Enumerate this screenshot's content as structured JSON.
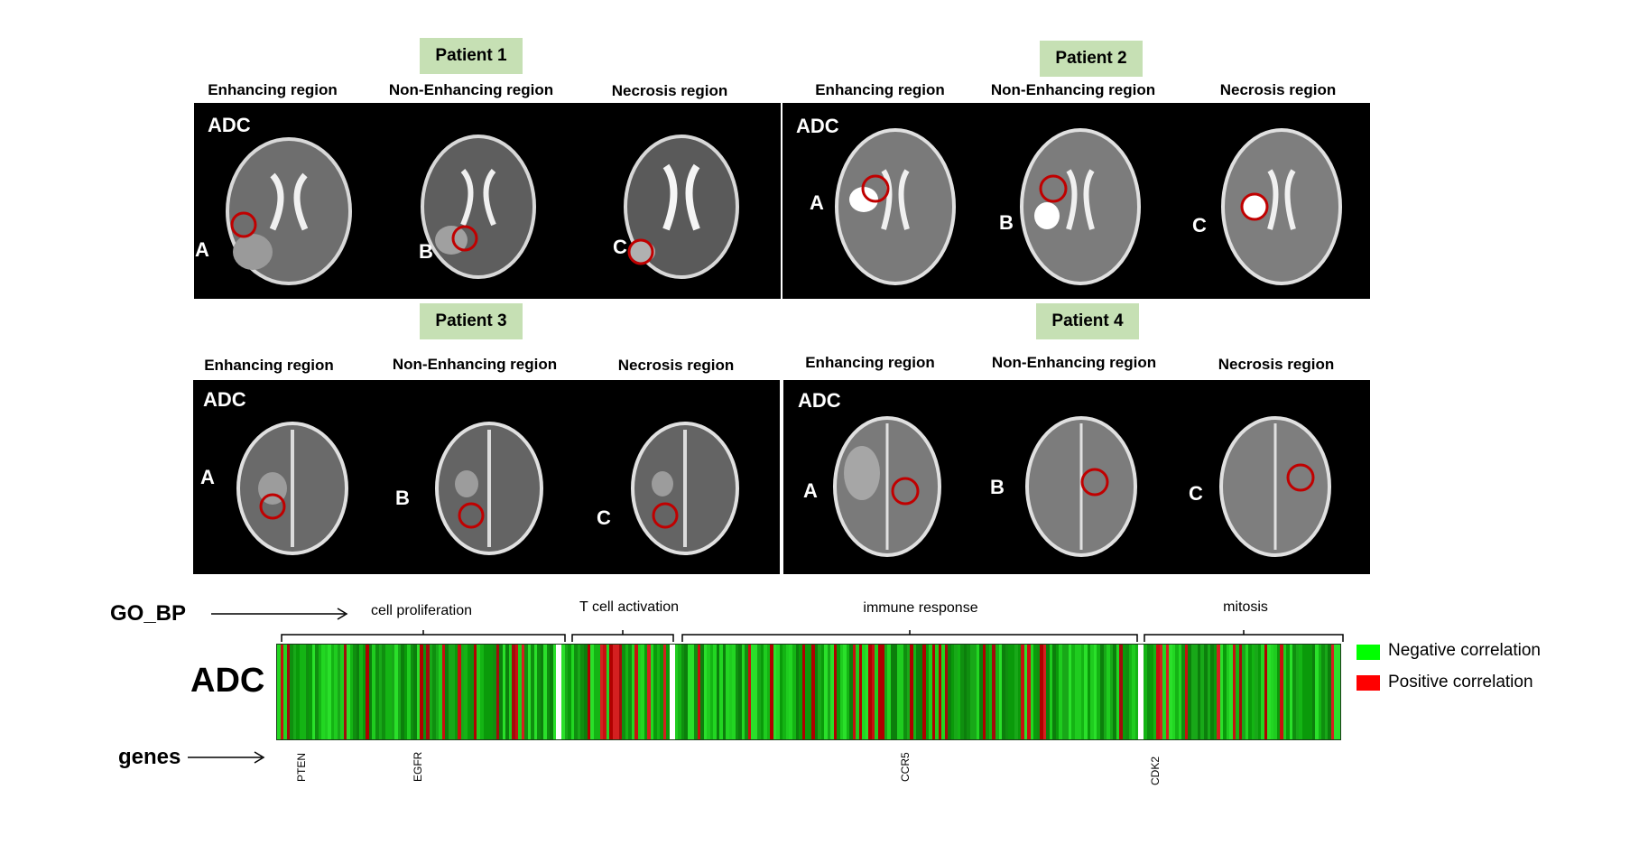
{
  "patients": [
    {
      "title": "Patient 1",
      "adc_label": "ADC",
      "regions": [
        "Enhancing region",
        "Non-Enhancing region",
        "Necrosis region"
      ],
      "letters": [
        "A",
        "B",
        "C"
      ]
    },
    {
      "title": "Patient 2",
      "adc_label": "ADC",
      "regions": [
        "Enhancing region",
        "Non-Enhancing region",
        "Necrosis region"
      ],
      "letters": [
        "A",
        "B",
        "C"
      ]
    },
    {
      "title": "Patient 3",
      "adc_label": "ADC",
      "regions": [
        "Enhancing region",
        "Non-Enhancing region",
        "Necrosis region"
      ],
      "letters": [
        "A",
        "B",
        "C"
      ]
    },
    {
      "title": "Patient 4",
      "adc_label": "ADC",
      "regions": [
        "Enhancing region",
        "Non-Enhancing region",
        "Necrosis region"
      ],
      "letters": [
        "A",
        "B",
        "C"
      ]
    }
  ],
  "heatmap": {
    "row_label": "ADC",
    "go_label": "GO_BP",
    "genes_label": "genes",
    "go_terms": [
      "cell proliferation",
      "T cell activation",
      "immune response",
      "mitosis"
    ],
    "genes": [
      "PTEN",
      "EGFR",
      "CCR5",
      "CDK2"
    ],
    "legend": [
      {
        "label": "Negative correlation",
        "color": "#00ff00"
      },
      {
        "label": "Positive correlation",
        "color": "#ff0000"
      }
    ]
  },
  "colors": {
    "badge": "#c6e0b4",
    "roi_circle": "#c00000",
    "panel_bg": "#000000"
  }
}
